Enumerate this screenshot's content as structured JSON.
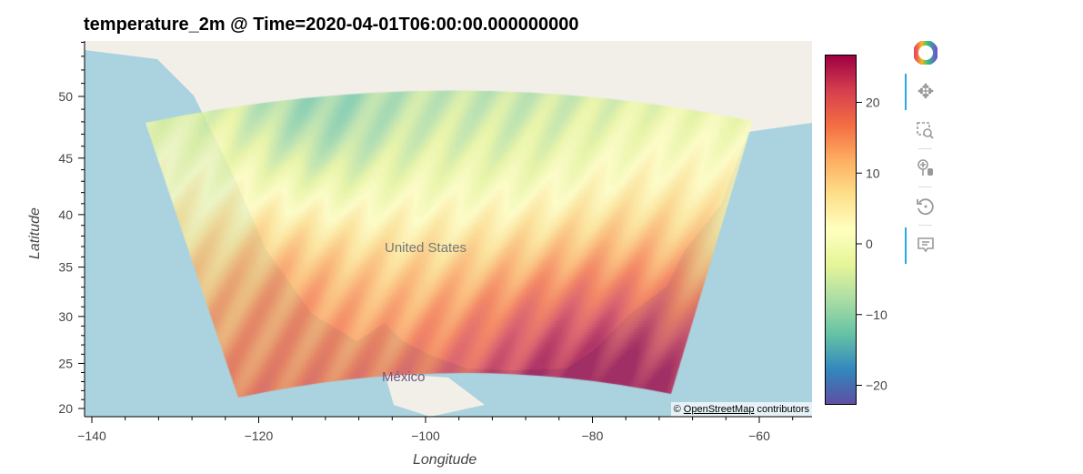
{
  "title": "temperature_2m @ Time=2020-04-01T06:00:00.000000000",
  "chart_data": {
    "type": "heatmap",
    "title": "temperature_2m @ Time=2020-04-01T06:00:00.000000000",
    "xlabel": "Longitude",
    "ylabel": "Latitude",
    "xticks": [
      "−140",
      "−120",
      "−100",
      "−80",
      "−60"
    ],
    "yticks": [
      "50",
      "45",
      "40",
      "35",
      "30",
      "25",
      "20"
    ],
    "xlim": [
      -141,
      -54
    ],
    "ylim": [
      19.2,
      54.8
    ],
    "colorbar": {
      "ticks": [
        "20",
        "10",
        "0",
        "−10",
        "−20"
      ],
      "range": [
        -22.7,
        26.8
      ],
      "colormap": "Spectral_r"
    },
    "map_labels": [
      "United States",
      "México"
    ]
  },
  "attribution": {
    "symbol": "©",
    "link": "OpenStreetMap",
    "text": "contributors"
  },
  "toolbar": {
    "tools": [
      "bokeh-logo",
      "pan-icon",
      "box-zoom-icon",
      "wheel-zoom-icon",
      "reset-icon",
      "hover-icon"
    ]
  },
  "colors": {
    "ocean": "#aad3df",
    "land": "#f2efe9"
  }
}
